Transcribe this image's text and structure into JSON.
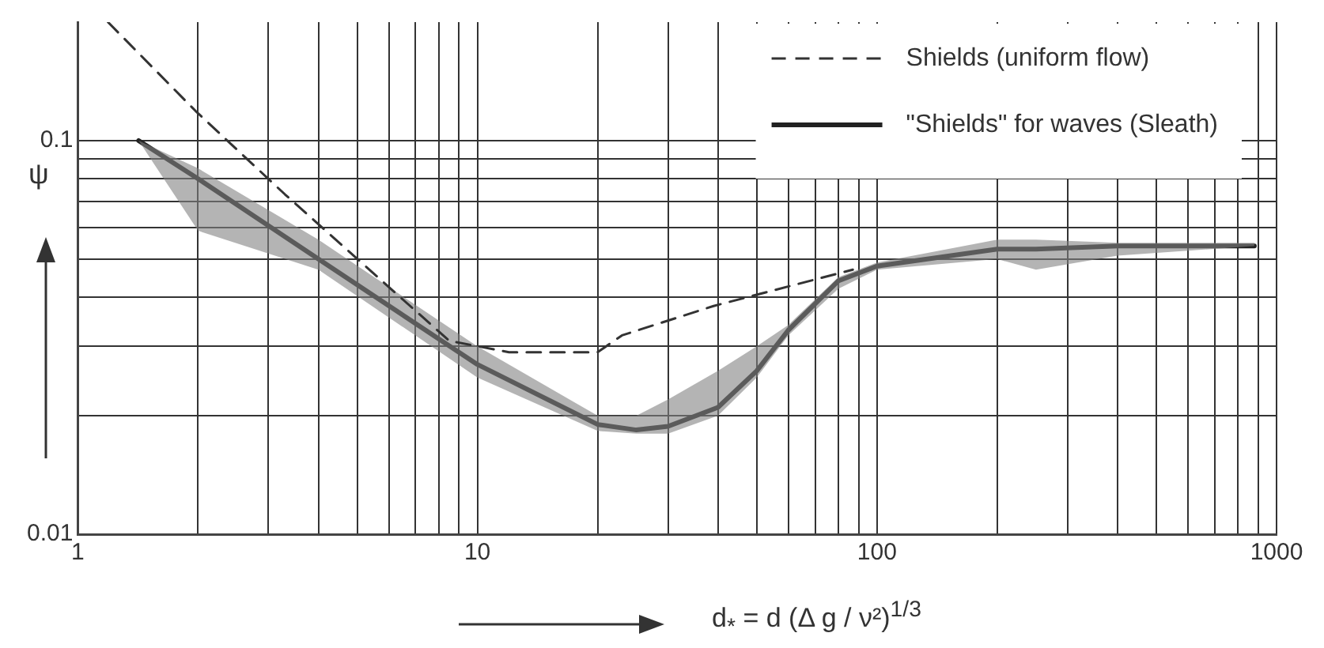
{
  "chart_data": {
    "type": "line",
    "xlabel": "d$_{*}$ = d (Δ g / ν²)$^{1/3}$",
    "ylabel": "ψ",
    "log": "xy",
    "grid": true,
    "legend": "top right",
    "marker": "none",
    "xlim": [
      1,
      1000
    ],
    "ylim": [
      0.01,
      0.2
    ],
    "xticks": [
      1,
      {
        "value": 2,
        "label": null
      },
      {
        "value": 3,
        "label": null
      },
      {
        "value": 4,
        "label": null
      },
      {
        "value": 5,
        "label": null
      },
      {
        "value": 6,
        "label": null
      },
      {
        "value": 7,
        "label": null
      },
      {
        "value": 8,
        "label": null
      },
      {
        "value": 9,
        "label": null
      },
      10,
      {
        "value": 20,
        "label": null
      },
      {
        "value": 30,
        "label": null
      },
      {
        "value": 40,
        "label": null
      },
      {
        "value": 50,
        "label": null
      },
      {
        "value": 60,
        "label": null
      },
      {
        "value": 70,
        "label": null
      },
      {
        "value": 80,
        "label": null
      },
      {
        "value": 90,
        "label": null
      },
      100,
      {
        "value": 200,
        "label": null
      },
      {
        "value": 300,
        "label": null
      },
      {
        "value": 400,
        "label": null
      },
      {
        "value": 500,
        "label": null
      },
      {
        "value": 600,
        "label": null
      },
      {
        "value": 700,
        "label": null
      },
      {
        "value": 800,
        "label": null
      },
      {
        "value": 900,
        "label": null
      },
      1000
    ],
    "yticks": [
      0.01,
      {
        "value": 0.02,
        "label": null
      },
      {
        "value": 0.03,
        "label": null
      },
      {
        "value": 0.04,
        "label": null
      },
      {
        "value": 0.05,
        "label": null
      },
      {
        "value": 0.06,
        "label": null
      },
      {
        "value": 0.07,
        "label": null
      },
      {
        "value": 0.08,
        "label": null
      },
      {
        "value": 0.09,
        "label": null
      },
      0.1
    ],
    "series": [
      {
        "name": "Shields (uniform flow)",
        "color": "#333333",
        "line_style": "dashed",
        "x": [
          1.19,
          1.97,
          3.3,
          8.5,
          12,
          20,
          23,
          39,
          87
        ],
        "values": [
          0.2,
          0.119,
          0.073,
          0.031,
          0.029,
          0.029,
          0.032,
          0.038,
          0.047
        ]
      },
      {
        "name": "\"Shields\" for waves (Sleath)",
        "color": "#222222",
        "line_style": "solid",
        "x": [
          1.42,
          2,
          4,
          10,
          20,
          25,
          30,
          40,
          50,
          60,
          80,
          100,
          200,
          250,
          400,
          880
        ],
        "values": [
          0.1,
          0.08,
          0.05,
          0.027,
          0.019,
          0.0184,
          0.0188,
          0.021,
          0.026,
          0.033,
          0.044,
          0.048,
          0.053,
          0.053,
          0.054,
          0.054
        ],
        "lower": [
          0.1,
          0.059,
          0.047,
          0.025,
          0.0183,
          0.018,
          0.018,
          0.02,
          0.025,
          0.032,
          0.042,
          0.047,
          0.05,
          0.047,
          0.051,
          0.054
        ],
        "upper": [
          0.1,
          0.085,
          0.056,
          0.03,
          0.02,
          0.02,
          0.022,
          0.026,
          0.03,
          0.034,
          0.045,
          0.049,
          0.056,
          0.056,
          0.055,
          0.055
        ]
      }
    ]
  }
}
